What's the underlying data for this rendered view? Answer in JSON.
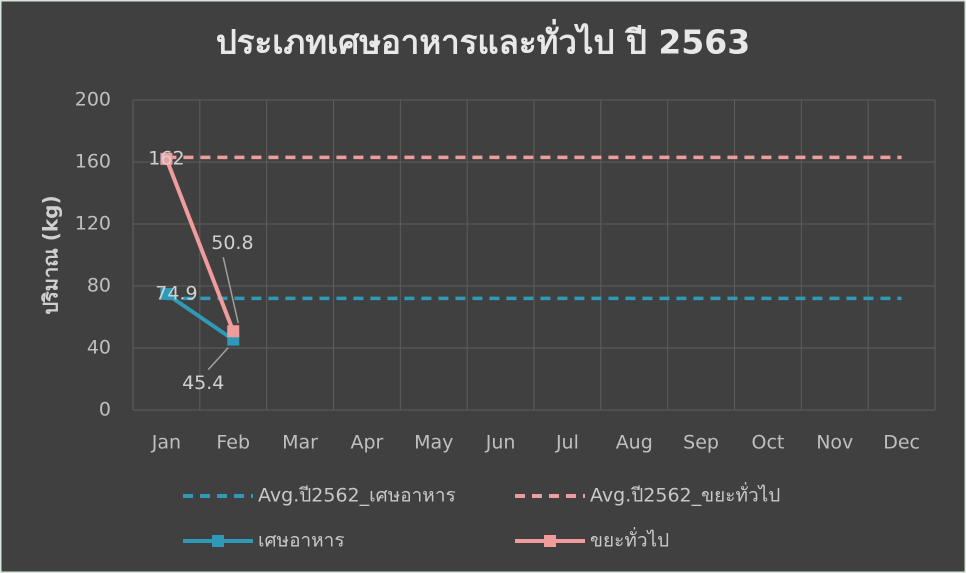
{
  "chart_data": {
    "type": "line",
    "title": "ประเภทเศษอาหารและทั่วไป ปี 2563",
    "y_label": "ปริมาณ (kg)",
    "categories": [
      "Jan",
      "Feb",
      "Mar",
      "Apr",
      "May",
      "Jun",
      "Jul",
      "Aug",
      "Sep",
      "Oct",
      "Nov",
      "Dec"
    ],
    "series": [
      {
        "name": "Avg.ปี2562_เศษอาหาร",
        "color": "#2e9ab8",
        "style": "dashed",
        "values": [
          72,
          72,
          72,
          72,
          72,
          72,
          72,
          72,
          72,
          72,
          72,
          72
        ]
      },
      {
        "name": "Avg.ปี2562_ขยะทั่วไป",
        "color": "#f19c9c",
        "style": "dashed",
        "values": [
          163,
          163,
          163,
          163,
          163,
          163,
          163,
          163,
          163,
          163,
          163,
          163
        ]
      },
      {
        "name": "เศษอาหาร",
        "color": "#2e9ab8",
        "style": "solid",
        "marker": "square",
        "values": [
          74.9,
          45.4,
          null,
          null,
          null,
          null,
          null,
          null,
          null,
          null,
          null,
          null
        ]
      },
      {
        "name": "ขยะทั่วไป",
        "color": "#f19c9c",
        "style": "solid",
        "marker": "square",
        "values": [
          162,
          50.8,
          null,
          null,
          null,
          null,
          null,
          null,
          null,
          null,
          null,
          null
        ]
      }
    ],
    "ylim": [
      0,
      200
    ],
    "yticks": [
      0,
      40,
      80,
      120,
      160,
      200
    ],
    "grid": true
  }
}
